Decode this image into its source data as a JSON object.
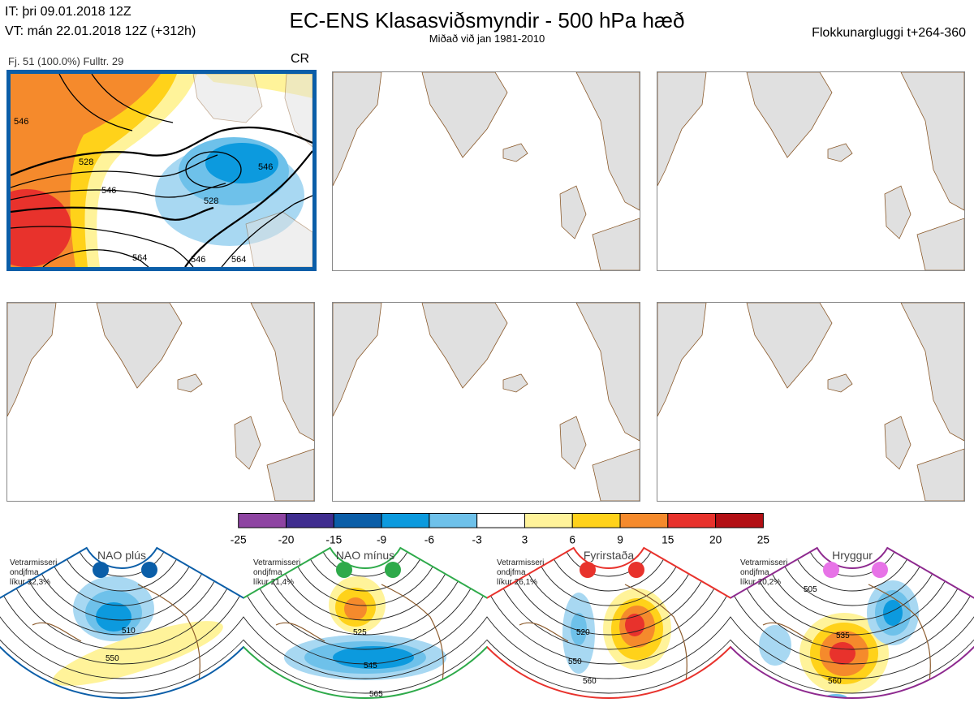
{
  "header": {
    "it": "IT: þri 09.01.2018 12Z",
    "vt": "VT: mán 22.01.2018 12Z  (+312h)",
    "title": "EC-ENS Klasasviðsmyndir - 500 hPa hæð",
    "subtitle": "Miðað við jan 1981-2010",
    "window": "Flokkunargluggi t+264-360"
  },
  "cluster": {
    "label": "Fj. 51 (100.0%)   Fulltr. 29",
    "code": "CR",
    "contours": [
      "528",
      "546",
      "528",
      "546",
      "564",
      "546",
      "564",
      "546"
    ]
  },
  "colors": {
    "cluster_border": "#0b5ea8",
    "land": "#e0e0e0",
    "coast": "#8b5a2b"
  },
  "chart_data": {
    "type": "heatmap",
    "title": "EC-ENS Klasasviðsmyndir - 500 hPa hæð",
    "colorbar": {
      "ticks": [
        "-25",
        "-20",
        "-15",
        "-9",
        "-6",
        "-3",
        "3",
        "6",
        "9",
        "15",
        "20",
        "25"
      ],
      "colors": [
        "#8e44a2",
        "#3f2d8f",
        "#0b5ea8",
        "#0c9ade",
        "#6ec1ea",
        "#ffffff",
        "#fff39a",
        "#ffd21a",
        "#f58a2c",
        "#e8322c",
        "#b30f14"
      ]
    },
    "panels_filled": 1,
    "panels_total": 6
  },
  "regimes": [
    {
      "name": "NAO plús",
      "info": [
        "Vetrarmisseri",
        "ondjfma",
        "líkur 32,3%"
      ],
      "color": "#0b5ea8",
      "dot": "#0b5ea8",
      "labels": [
        "510",
        "550"
      ]
    },
    {
      "name": "NAO mínus",
      "info": [
        "Vetrarmisseri",
        "ondjfma",
        "líkur 21,4%"
      ],
      "color": "#2eaa4a",
      "dot": "#2eaa4a",
      "labels": [
        "525",
        "545",
        "565"
      ]
    },
    {
      "name": "Fyrirstaða",
      "info": [
        "Vetrarmisseri",
        "ondjfma",
        "líkur 26,1%"
      ],
      "color": "#e8322c",
      "dot": "#e8322c",
      "labels": [
        "520",
        "550",
        "560"
      ]
    },
    {
      "name": "Hryggur",
      "info": [
        "Vetrarmisseri",
        "ondjfma",
        "líkur 20,2%"
      ],
      "color": "#8e2a8f",
      "dot": "#e773e7",
      "labels": [
        "505",
        "535",
        "560"
      ]
    }
  ]
}
